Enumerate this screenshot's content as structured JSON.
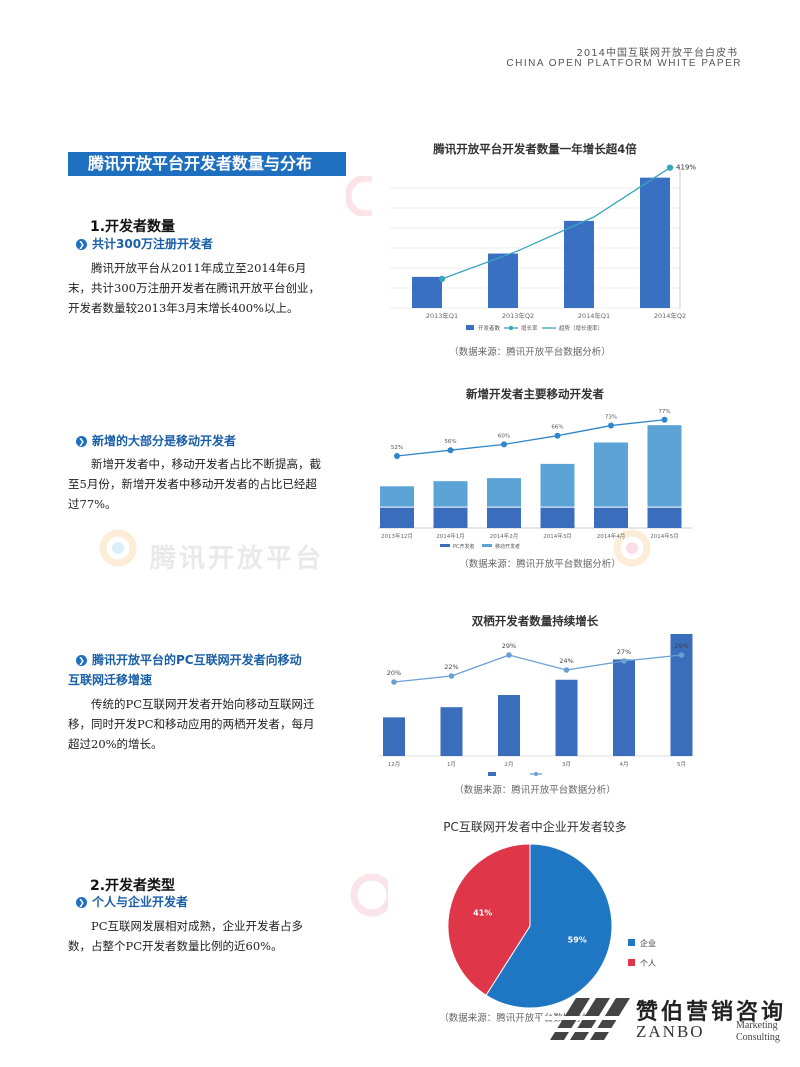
{
  "header": {
    "line1": "2014中国互联网开放平台白皮书",
    "line2": "CHINA OPEN PLATFORM WHITE PAPER"
  },
  "banner": "腾讯开放平台开发者数量与分布",
  "section1": {
    "heading": "1.开发者数量",
    "sub1": "共计300万注册开发者",
    "para1": "腾讯开放平台从2011年成立至2014年6月末，共计300万注册开发者在腾讯开放平台创业，开发者数量较2013年3月末增长400%以上。",
    "sub2": "新增的大部分是移动开发者",
    "para2": "新增开发者中，移动开发者占比不断提高，截至5月份，新增开发者中移动开发者的占比已经超过77%。",
    "sub3a": "腾讯开放平台的PC互联网开发者向移动",
    "sub3b": "互联网迁移增速",
    "para3": "传统的PC互联网开发者开始向移动互联网迁移，同时开发PC和移动应用的两栖开发者，每月超过20%的增长。"
  },
  "section2": {
    "heading": "2.开发者类型",
    "sub1": "个人与企业开发者",
    "para1": "PC互联网发展相对成熟，企业开发者占多数，占整个PC开发者数量比例的近60%。"
  },
  "source_text": "（数据来源：腾讯开放平台数据分析）",
  "watermark_text": "腾讯开放平台",
  "logo": {
    "cn": "赞伯营销咨询",
    "en": "ZANBO",
    "sub1": "Marketing",
    "sub2": "Consulting"
  },
  "chart_data": [
    {
      "type": "bar",
      "title": "腾讯开放平台开发者数量一年增长超4倍",
      "categories": [
        "2013年Q1",
        "2013年Q2",
        "2014年Q1",
        "2014年Q2"
      ],
      "values": [
        100,
        175,
        280,
        419
      ],
      "trend_label": "419%",
      "legend": [
        "开发者数",
        "增长率",
        "趋势（增长速率）"
      ],
      "colors": {
        "bar": "#3a70c2",
        "line": "#3aa6b9"
      }
    },
    {
      "type": "bar",
      "title": "新增开发者主要移动开发者",
      "categories": [
        "2013年12月",
        "2014年1月",
        "2014年2月",
        "2014年3月",
        "2014年4月",
        "2014年5月"
      ],
      "series": [
        {
          "name": "PC开发者",
          "values": [
            20,
            20,
            20,
            20,
            20,
            20
          ]
        },
        {
          "name": "移动开发者",
          "values": [
            20,
            25,
            28,
            42,
            63,
            80
          ]
        }
      ],
      "line_labels": [
        "52%",
        "56%",
        "60%",
        "66%",
        "73%",
        "77%"
      ],
      "line_values": [
        52,
        56,
        60,
        66,
        73,
        77
      ],
      "colors": {
        "bottom": "#3a6dbb",
        "top": "#5ca3d6",
        "line": "#2f86c8"
      }
    },
    {
      "type": "bar",
      "title": "双栖开发者数量持续增长",
      "categories": [
        "12月",
        "1月",
        "2月",
        "3月",
        "4月",
        "5月"
      ],
      "values": [
        38,
        48,
        60,
        75,
        95,
        120
      ],
      "line_labels": [
        "20%",
        "22%",
        "29%",
        "24%",
        "27%",
        "29%"
      ],
      "line_values": [
        20,
        22,
        29,
        24,
        27,
        29
      ],
      "colors": {
        "bar": "#3a6dbb",
        "line": "#6a9fd4"
      }
    },
    {
      "type": "pie",
      "title": "PC互联网开发者中企业开发者较多",
      "labels": [
        "企业",
        "个人"
      ],
      "values": [
        59,
        41
      ],
      "value_labels": [
        "59%",
        "41%"
      ],
      "colors": [
        "#1f77c4",
        "#e0364a"
      ]
    }
  ]
}
